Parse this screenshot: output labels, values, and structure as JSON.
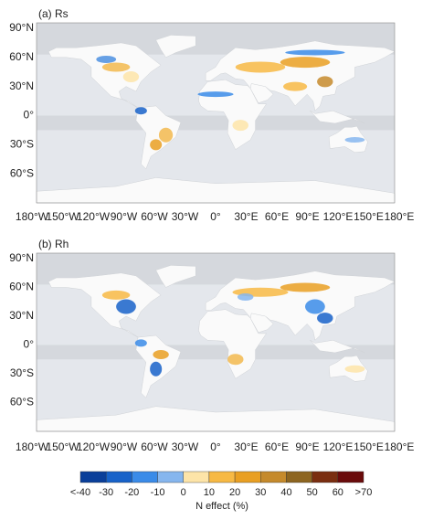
{
  "panels": [
    {
      "label": "(a) Rs",
      "lat_labels": [
        "90°N",
        "60°N",
        "30°N",
        "0°",
        "30°S",
        "60°S"
      ],
      "lon_labels": [
        "180°W",
        "150°W",
        "120°W",
        "90°W",
        "60°W",
        "30°W",
        "0°",
        "30°E",
        "60°E",
        "90°E",
        "120°E",
        "150°E",
        "180°E"
      ]
    },
    {
      "label": "(b) Rh",
      "lat_labels": [
        "90°N",
        "60°N",
        "30°N",
        "0°",
        "30°S",
        "60°S"
      ],
      "lon_labels": [
        "180°W",
        "150°W",
        "120°W",
        "90°W",
        "60°W",
        "30°W",
        "0°",
        "30°E",
        "60°E",
        "90°E",
        "120°E",
        "150°E",
        "180°E"
      ]
    }
  ],
  "colorbar": {
    "title": "N effect (%)",
    "labels": [
      "<-40",
      "-30",
      "-20",
      "-10",
      "0",
      "10",
      "20",
      "30",
      "40",
      "50",
      "60",
      ">70"
    ],
    "colors": [
      "#0a3f9a",
      "#1762c9",
      "#3a8be8",
      "#86b6ee",
      "#fde4a8",
      "#f7b944",
      "#e99f22",
      "#c58a2c",
      "#8d6520",
      "#7a2e10",
      "#6a0b0b"
    ]
  }
}
